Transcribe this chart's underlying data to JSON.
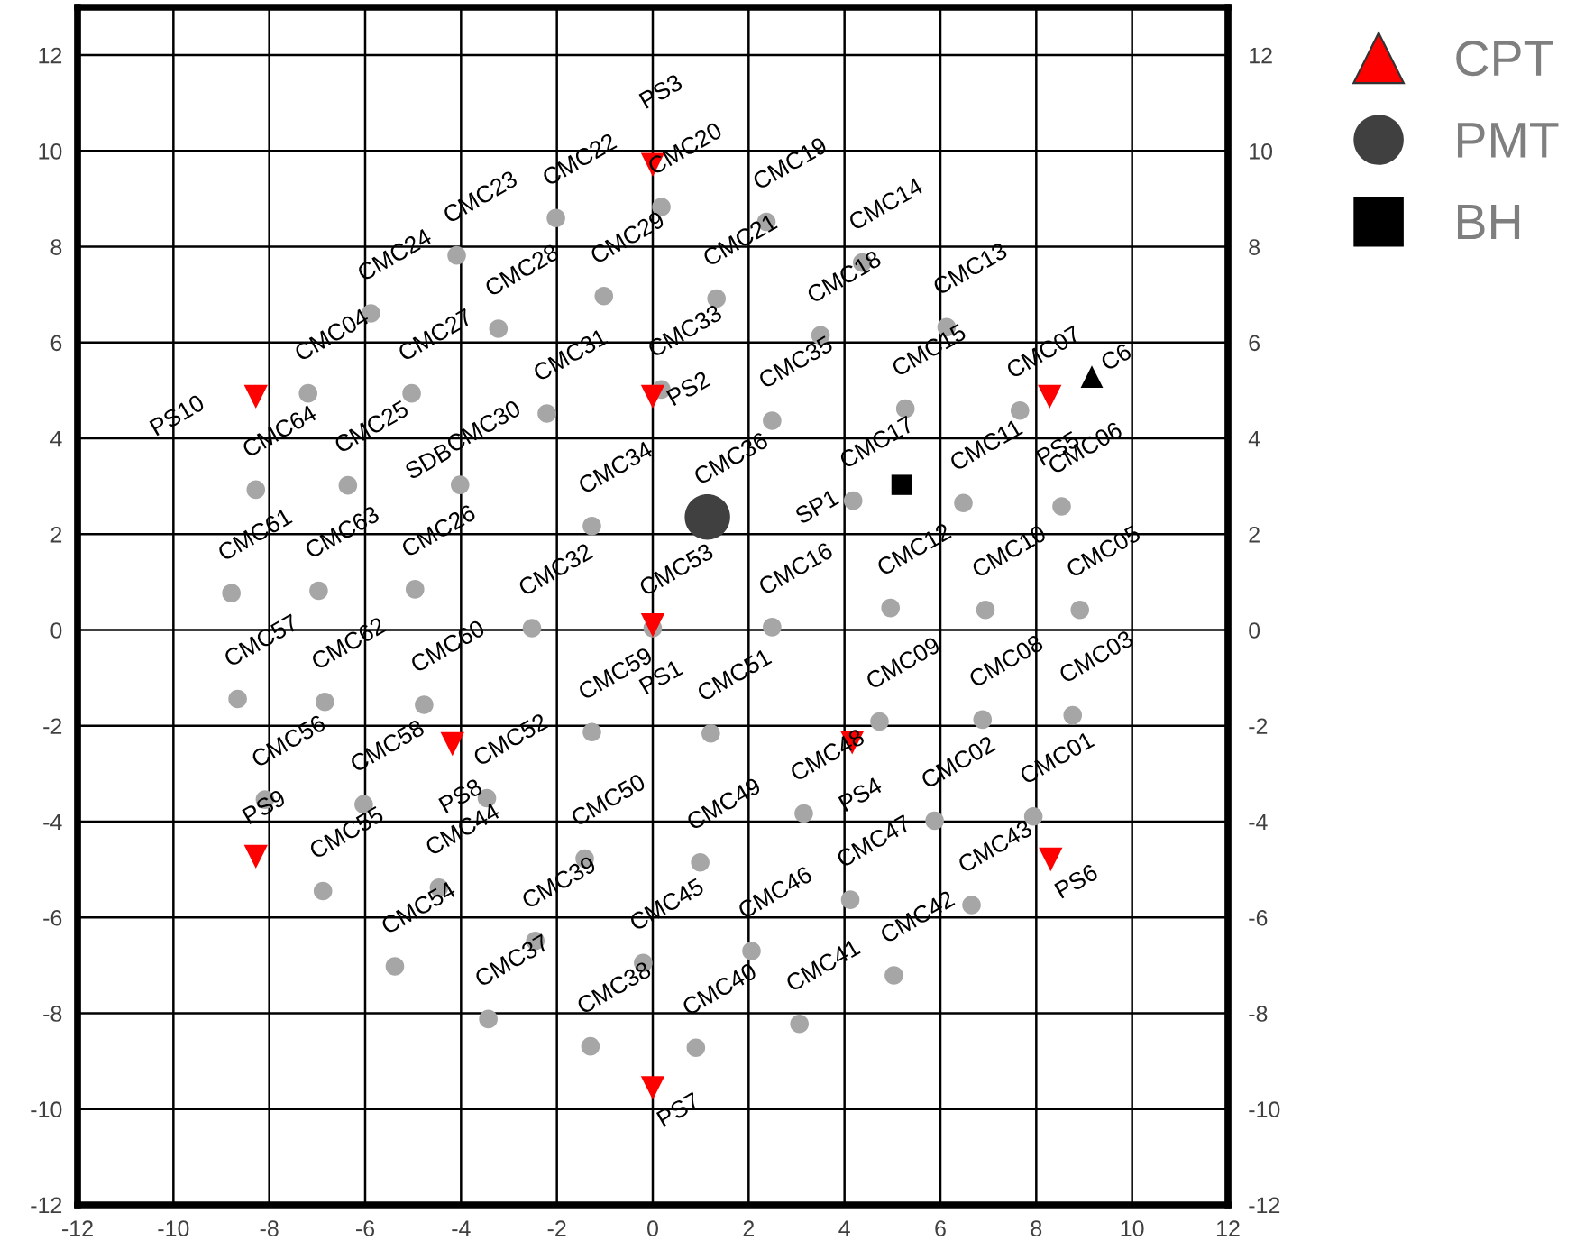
{
  "chart_data": {
    "type": "scatter",
    "xlim": [
      -12,
      12
    ],
    "ylim": [
      -12,
      13
    ],
    "y2lim": [
      -12,
      13
    ],
    "xticks": [
      -12,
      -10,
      -8,
      -6,
      -4,
      -2,
      0,
      2,
      4,
      6,
      8,
      10,
      12
    ],
    "yticks": [
      -12,
      -10,
      -8,
      -6,
      -4,
      -2,
      0,
      2,
      4,
      6,
      8,
      10,
      12
    ],
    "y2ticks": [
      -12,
      -10,
      -8,
      -6,
      -4,
      -2,
      0,
      2,
      4,
      6,
      8,
      10,
      12
    ],
    "grid": true,
    "legend": "top right",
    "series": [
      {
        "color": "#a6a6a6",
        "marker": "circle",
        "x": [
          7.94,
          5.88,
          8.76,
          -7.19,
          8.91,
          8.53,
          7.66,
          6.88,
          4.73,
          6.94,
          6.48,
          4.96,
          6.13,
          4.37,
          5.27,
          2.49,
          4.18,
          3.5,
          2.37,
          0.18,
          1.33,
          -2.02,
          -4.09,
          -5.88,
          -6.36,
          -4.96,
          -5.03,
          -3.22,
          -1.02,
          -4.02,
          -2.21,
          -2.52,
          0.18,
          -1.27,
          2.49,
          -3.43,
          -1.3,
          -2.45,
          0.9,
          3.06,
          5.03,
          6.65,
          -4.46,
          -0.2,
          2.06,
          4.12,
          3.15,
          0.99,
          -1.42,
          1.21,
          -3.46,
          0.0,
          -5.38,
          -6.88,
          -8.09,
          -8.66,
          -6.03,
          -1.27,
          -4.77,
          -8.79,
          -6.84,
          -6.97,
          -8.28
        ],
        "values": [
          -3.89,
          -3.98,
          -1.78,
          4.94,
          0.42,
          2.58,
          4.58,
          -1.87,
          -1.91,
          0.42,
          2.65,
          0.46,
          6.32,
          7.67,
          4.62,
          0.06,
          2.7,
          6.15,
          8.52,
          8.83,
          6.92,
          8.6,
          7.82,
          6.61,
          3.02,
          0.85,
          4.94,
          6.29,
          6.97,
          3.03,
          4.52,
          0.04,
          5.02,
          2.17,
          4.37,
          -8.12,
          -8.69,
          -6.49,
          -8.72,
          -8.22,
          -7.21,
          -5.74,
          -5.38,
          -6.95,
          -6.7,
          -5.63,
          -3.83,
          -4.85,
          -4.77,
          -2.16,
          -3.51,
          0.04,
          -7.02,
          -5.45,
          -3.54,
          -1.44,
          -3.64,
          -2.13,
          -1.56,
          0.77,
          -1.5,
          0.82,
          2.93
        ]
      },
      {
        "name": "CPT",
        "color": "#ff0000",
        "marker": "triangle",
        "x": [
          0.0,
          0.0,
          0.0,
          4.16,
          8.28,
          8.3,
          0.0,
          -4.18,
          -8.28,
          -8.28
        ],
        "values": [
          0.1,
          4.87,
          9.71,
          -2.35,
          4.87,
          -4.79,
          -9.56,
          -2.38,
          -4.73,
          4.87
        ]
      },
      {
        "name": "PMT",
        "color": "#404040",
        "marker": "circle",
        "x": [
          1.14
        ],
        "values": [
          2.36
        ]
      },
      {
        "name": "BH",
        "color": "#000000",
        "marker": "square",
        "x": [
          5.19
        ],
        "values": [
          3.03
        ]
      },
      {
        "color": "#000000",
        "marker": "triangle",
        "x": [
          9.16
        ],
        "values": [
          5.29
        ]
      }
    ],
    "annotations": [
      {
        "text": "CMC01",
        "x": 7.94,
        "y": -3.89
      },
      {
        "text": "CMC02",
        "x": 5.88,
        "y": -3.98
      },
      {
        "text": "CMC03",
        "x": 8.76,
        "y": -1.78
      },
      {
        "text": "CMC04",
        "x": -7.19,
        "y": 4.94
      },
      {
        "text": "CMC05",
        "x": 8.91,
        "y": 0.42
      },
      {
        "text": "CMC06",
        "x": 8.53,
        "y": 2.58
      },
      {
        "text": "CMC07",
        "x": 7.66,
        "y": 4.58
      },
      {
        "text": "CMC08",
        "x": 6.88,
        "y": -1.87
      },
      {
        "text": "CMC09",
        "x": 4.73,
        "y": -1.91
      },
      {
        "text": "CMC10",
        "x": 6.94,
        "y": 0.42
      },
      {
        "text": "CMC11",
        "x": 6.48,
        "y": 2.65
      },
      {
        "text": "CMC12",
        "x": 4.96,
        "y": 0.46
      },
      {
        "text": "CMC13",
        "x": 6.13,
        "y": 6.32
      },
      {
        "text": "CMC14",
        "x": 4.37,
        "y": 7.67
      },
      {
        "text": "CMC15",
        "x": 5.27,
        "y": 4.62
      },
      {
        "text": "CMC16",
        "x": 2.49,
        "y": 0.06
      },
      {
        "text": "CMC17",
        "x": 4.18,
        "y": 2.7
      },
      {
        "text": "CMC18",
        "x": 3.5,
        "y": 6.15
      },
      {
        "text": "CMC19",
        "x": 2.37,
        "y": 8.52
      },
      {
        "text": "CMC20",
        "x": 0.18,
        "y": 8.83
      },
      {
        "text": "CMC21",
        "x": 1.33,
        "y": 6.92
      },
      {
        "text": "CMC22",
        "x": -2.02,
        "y": 8.6
      },
      {
        "text": "CMC23",
        "x": -4.09,
        "y": 7.82
      },
      {
        "text": "CMC24",
        "x": -5.88,
        "y": 6.61
      },
      {
        "text": "CMC25",
        "x": -6.36,
        "y": 3.02
      },
      {
        "text": "CMC26",
        "x": -4.96,
        "y": 0.85
      },
      {
        "text": "CMC27",
        "x": -5.03,
        "y": 4.94
      },
      {
        "text": "CMC28",
        "x": -3.22,
        "y": 6.29
      },
      {
        "text": "CMC29",
        "x": -1.02,
        "y": 6.97
      },
      {
        "text": "CMC30",
        "x": -4.02,
        "y": 3.03
      },
      {
        "text": "CMC31",
        "x": -2.21,
        "y": 4.52
      },
      {
        "text": "CMC32",
        "x": -2.52,
        "y": 0.04
      },
      {
        "text": "CMC33",
        "x": 0.18,
        "y": 5.02
      },
      {
        "text": "CMC34",
        "x": -1.27,
        "y": 2.17
      },
      {
        "text": "CMC35",
        "x": 2.49,
        "y": 4.37
      },
      {
        "text": "CMC36",
        "x": 1.14,
        "y": 2.36
      },
      {
        "text": "CMC37",
        "x": -3.43,
        "y": -8.12
      },
      {
        "text": "CMC38",
        "x": -1.3,
        "y": -8.69
      },
      {
        "text": "CMC39",
        "x": -2.45,
        "y": -6.49
      },
      {
        "text": "CMC40",
        "x": 0.9,
        "y": -8.72
      },
      {
        "text": "CMC41",
        "x": 3.06,
        "y": -8.22
      },
      {
        "text": "CMC42",
        "x": 5.03,
        "y": -7.21
      },
      {
        "text": "CMC43",
        "x": 6.65,
        "y": -5.74
      },
      {
        "text": "CMC44",
        "x": -4.46,
        "y": -5.38
      },
      {
        "text": "CMC45",
        "x": -0.2,
        "y": -6.95
      },
      {
        "text": "CMC46",
        "x": 2.06,
        "y": -6.7
      },
      {
        "text": "CMC47",
        "x": 4.12,
        "y": -5.63
      },
      {
        "text": "CMC48",
        "x": 3.15,
        "y": -3.83
      },
      {
        "text": "CMC49",
        "x": 0.99,
        "y": -4.85
      },
      {
        "text": "CMC50",
        "x": -1.42,
        "y": -4.77
      },
      {
        "text": "CMC51",
        "x": 1.21,
        "y": -2.16
      },
      {
        "text": "CMC52",
        "x": -3.46,
        "y": -3.51
      },
      {
        "text": "CMC53",
        "x": 0.0,
        "y": 0.04
      },
      {
        "text": "CMC54",
        "x": -5.38,
        "y": -7.02
      },
      {
        "text": "CMC55",
        "x": -6.88,
        "y": -5.45
      },
      {
        "text": "CMC56",
        "x": -8.09,
        "y": -3.54
      },
      {
        "text": "CMC57",
        "x": -8.66,
        "y": -1.44
      },
      {
        "text": "CMC58",
        "x": -6.03,
        "y": -3.64
      },
      {
        "text": "CMC59",
        "x": -1.27,
        "y": -2.13
      },
      {
        "text": "CMC60",
        "x": -4.77,
        "y": -1.56
      },
      {
        "text": "CMC61",
        "x": -8.79,
        "y": 0.77
      },
      {
        "text": "CMC62",
        "x": -6.84,
        "y": -1.5
      },
      {
        "text": "CMC63",
        "x": -6.97,
        "y": 0.82
      },
      {
        "text": "CMC64",
        "x": -8.28,
        "y": 2.93
      },
      {
        "text": "PS1",
        "x": 0.0,
        "y": 0.1
      },
      {
        "text": "PS2",
        "x": 0.0,
        "y": 4.87
      },
      {
        "text": "PS3",
        "x": 0.0,
        "y": 9.71
      },
      {
        "text": "PS4",
        "x": 4.16,
        "y": -2.35
      },
      {
        "text": "PS5",
        "x": 8.28,
        "y": 4.87
      },
      {
        "text": "PS6",
        "x": 8.3,
        "y": -4.79
      },
      {
        "text": "PS7",
        "x": 0.0,
        "y": -9.56
      },
      {
        "text": "PS8",
        "x": -4.18,
        "y": -2.38
      },
      {
        "text": "PS9",
        "x": -8.28,
        "y": -4.73
      },
      {
        "text": "PS10",
        "x": -8.28,
        "y": 4.87
      },
      {
        "text": "SP1",
        "x": 5.19,
        "y": 3.03
      },
      {
        "text": "C6",
        "x": 9.16,
        "y": 5.29
      },
      "SDB"
    ]
  }
}
